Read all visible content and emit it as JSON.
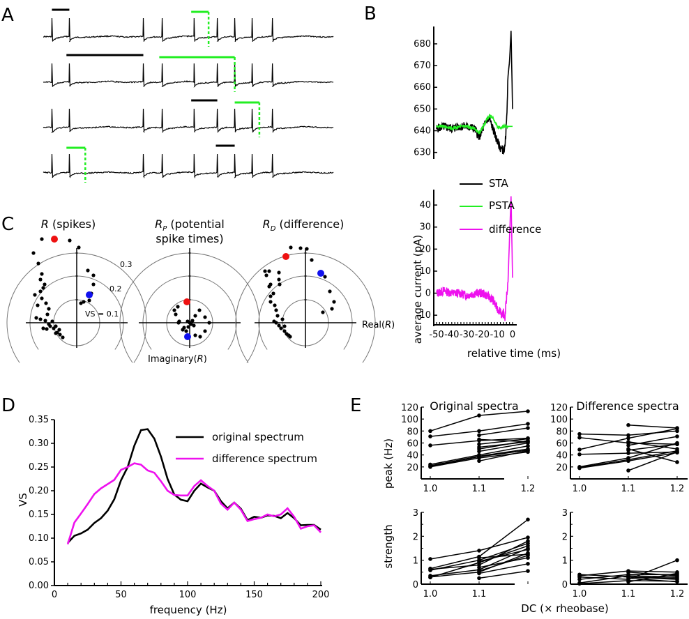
{
  "panels": {
    "A": {
      "letter": "A"
    },
    "B": {
      "letter": "B"
    },
    "C": {
      "letter": "C"
    },
    "D": {
      "letter": "D"
    },
    "E": {
      "letter": "E"
    }
  },
  "colors": {
    "black": "#000000",
    "green": "#22ee22",
    "magenta": "#ee11ee",
    "red": "#ee1111",
    "blue": "#1111ee",
    "grey": "#777777"
  },
  "chart_data": [
    {
      "id": "A",
      "type": "line",
      "title": "",
      "description": "Four voltage traces with spikes; black bars mark ISIs, green bars with dashed lines mark potential spike times",
      "spike_times_frac": [
        0.03,
        0.09,
        0.345,
        0.41,
        0.52,
        0.6,
        0.66,
        0.72,
        0.79
      ],
      "traces": [
        {
          "black_bar": [
            0.03,
            0.09
          ],
          "green_bar": [
            0.51,
            0.57
          ]
        },
        {
          "black_bar": [
            0.08,
            0.345
          ],
          "green_bar": [
            0.4,
            0.66
          ]
        },
        {
          "black_bar": [
            0.51,
            0.6
          ],
          "green_bar": [
            0.66,
            0.745
          ]
        },
        {
          "black_bar": [
            0.595,
            0.66
          ],
          "green_bar": [
            0.08,
            0.145
          ]
        }
      ]
    },
    {
      "id": "B-top",
      "type": "line",
      "ylabel": "average current (pA)",
      "ylim": [
        627,
        688
      ],
      "yticks": [
        630,
        640,
        650,
        660,
        670,
        680
      ],
      "xlim": [
        -50,
        0
      ],
      "series": [
        {
          "name": "STA",
          "x": [
            -50,
            -45,
            -40,
            -35,
            -30,
            -25,
            -22,
            -20,
            -17,
            -15,
            -13,
            -10,
            -8,
            -6,
            -5,
            -4,
            -3,
            -2,
            -1,
            0
          ],
          "values": [
            641,
            642,
            641,
            642,
            642,
            641,
            637,
            640,
            645,
            645,
            641,
            635,
            632,
            631,
            632,
            643,
            665,
            672,
            686,
            650
          ]
        },
        {
          "name": "PSTA",
          "x": [
            -50,
            -45,
            -40,
            -35,
            -30,
            -25,
            -22,
            -20,
            -17,
            -15,
            -13,
            -10,
            -8,
            -6,
            -4,
            -2,
            0
          ],
          "values": [
            642,
            642,
            641,
            642,
            642,
            641,
            639,
            641,
            645,
            647,
            646,
            642,
            641,
            642,
            642,
            642,
            642
          ]
        }
      ]
    },
    {
      "id": "B-bottom",
      "type": "line",
      "xlabel": "relative time (ms)",
      "ylim": [
        -15,
        47
      ],
      "yticks": [
        -10,
        0,
        10,
        20,
        30,
        40
      ],
      "xlim": [
        -50,
        0
      ],
      "xticks": [
        -50,
        -40,
        -30,
        -20,
        -10,
        0
      ],
      "legend": [
        "STA",
        "PSTA",
        "difference"
      ],
      "series": [
        {
          "name": "difference",
          "x": [
            -50,
            -45,
            -40,
            -35,
            -30,
            -25,
            -20,
            -17,
            -15,
            -13,
            -11,
            -9,
            -8,
            -7,
            -6,
            -5,
            -4,
            -3,
            -2,
            -1,
            0
          ],
          "values": [
            0,
            1,
            0,
            0,
            -1,
            0,
            0,
            -1,
            -2,
            -3,
            -6,
            -8,
            -7,
            -11,
            -9,
            -11,
            -2,
            5,
            25,
            44,
            7
          ]
        }
      ]
    },
    {
      "id": "C",
      "type": "scatter",
      "subplots": [
        {
          "title_sym": "R",
          "title_sub": "",
          "title_rest": " (spikes)",
          "ring_labels": [
            "VS = 0.1",
            "0.2",
            "0.3"
          ]
        },
        {
          "title_sym": "R",
          "title_sub": "P",
          "title_rest": " (potential spike times)",
          "ring_labels": []
        },
        {
          "title_sym": "R",
          "title_sub": "D",
          "title_rest": " (difference)",
          "ring_labels": []
        }
      ],
      "xlabel": "Real(R)",
      "ylabel": "Imaginary(R)",
      "rings": [
        0.1,
        0.2,
        0.3
      ]
    },
    {
      "id": "D",
      "type": "line",
      "xlabel": "frequency (Hz)",
      "ylabel": "VS",
      "xlim": [
        0,
        200
      ],
      "ylim": [
        0,
        0.35
      ],
      "xticks": [
        0,
        50,
        100,
        150,
        200
      ],
      "yticks": [
        "0.00",
        "0.05",
        "0.10",
        "0.15",
        "0.20",
        "0.25",
        "0.30",
        "0.35"
      ],
      "legend": "top-right",
      "x": [
        10,
        15,
        20,
        25,
        30,
        35,
        40,
        45,
        50,
        55,
        60,
        65,
        70,
        75,
        80,
        85,
        90,
        95,
        100,
        105,
        110,
        115,
        120,
        125,
        130,
        135,
        140,
        145,
        150,
        155,
        160,
        165,
        170,
        175,
        180,
        185,
        190,
        195,
        200
      ],
      "series": [
        {
          "name": "original spectrum",
          "values": [
            0.09,
            0.105,
            0.11,
            0.118,
            0.132,
            0.142,
            0.158,
            0.182,
            0.222,
            0.25,
            0.295,
            0.328,
            0.33,
            0.31,
            0.272,
            0.225,
            0.192,
            0.181,
            0.178,
            0.2,
            0.215,
            0.207,
            0.2,
            0.178,
            0.163,
            0.175,
            0.162,
            0.138,
            0.145,
            0.143,
            0.148,
            0.147,
            0.142,
            0.153,
            0.142,
            0.127,
            0.128,
            0.128,
            0.118
          ]
        },
        {
          "name": "difference spectrum",
          "values": [
            0.087,
            0.133,
            0.152,
            0.172,
            0.193,
            0.205,
            0.214,
            0.223,
            0.244,
            0.25,
            0.258,
            0.255,
            0.243,
            0.238,
            0.22,
            0.2,
            0.191,
            0.19,
            0.19,
            0.21,
            0.222,
            0.21,
            0.2,
            0.173,
            0.16,
            0.175,
            0.16,
            0.136,
            0.14,
            0.143,
            0.15,
            0.146,
            0.15,
            0.163,
            0.145,
            0.12,
            0.125,
            0.127,
            0.112
          ]
        }
      ]
    },
    {
      "id": "E",
      "type": "line",
      "xlabel": "DC (× rheobase)",
      "col_titles": [
        "Original spectra",
        "Difference spectra"
      ],
      "row_labels": [
        "peak (Hz)",
        "strength"
      ],
      "x": [
        1.0,
        1.1,
        1.2
      ],
      "xticks": [
        "1.0",
        "1.1",
        "1.2"
      ],
      "peak_yticks": [
        20,
        40,
        60,
        80,
        100,
        120
      ],
      "strength_yticks": [
        0,
        1,
        2,
        3
      ],
      "original_peak": [
        [
          80,
          106,
          113
        ],
        [
          71,
          80,
          92
        ],
        [
          56,
          64,
          68
        ],
        [
          24,
          40,
          55
        ],
        [
          22,
          38,
          50
        ],
        [
          21,
          37,
          48
        ],
        [
          20,
          35,
          45
        ],
        [
          null,
          73,
          85
        ],
        [
          null,
          66,
          62
        ],
        [
          null,
          58,
          67
        ],
        [
          null,
          53,
          62
        ],
        [
          null,
          50,
          64
        ],
        [
          null,
          46,
          60
        ],
        [
          null,
          30,
          47
        ]
      ],
      "difference_peak": [
        [
          75,
          73,
          80
        ],
        [
          69,
          60,
          58
        ],
        [
          49,
          68,
          84
        ],
        [
          41,
          43,
          45
        ],
        [
          20,
          35,
          60
        ],
        [
          19,
          32,
          47
        ],
        [
          18,
          30,
          44
        ],
        [
          null,
          90,
          85
        ],
        [
          null,
          56,
          71
        ],
        [
          null,
          50,
          28
        ],
        [
          null,
          14,
          45
        ],
        [
          null,
          62,
          50
        ],
        [
          null,
          48,
          58
        ]
      ],
      "original_strength": [
        [
          1.05,
          1.4,
          1.95
        ],
        [
          0.65,
          1.15,
          2.7
        ],
        [
          0.62,
          0.8,
          1.8
        ],
        [
          0.58,
          1.0,
          1.7
        ],
        [
          0.35,
          0.6,
          1.5
        ],
        [
          0.3,
          0.5,
          1.3
        ],
        [
          0.28,
          0.9,
          1.6
        ],
        [
          null,
          0.25,
          0.55
        ],
        [
          null,
          0.45,
          0.85
        ],
        [
          null,
          0.7,
          1.1
        ],
        [
          null,
          1.1,
          1.25
        ],
        [
          null,
          0.55,
          1.2
        ],
        [
          null,
          0.95,
          1.45
        ]
      ],
      "difference_strength": [
        [
          0.4,
          0.3,
          0.25
        ],
        [
          0.35,
          0.55,
          0.5
        ],
        [
          0.3,
          0.2,
          1.0
        ],
        [
          0.2,
          0.4,
          0.4
        ],
        [
          0.05,
          0.35,
          0.3
        ],
        [
          0.02,
          0.15,
          0.12
        ],
        [
          null,
          0.5,
          0.35
        ],
        [
          null,
          0.25,
          0.1
        ],
        [
          null,
          0.1,
          0.45
        ],
        [
          null,
          0.3,
          0.2
        ]
      ]
    }
  ],
  "labels": {
    "b_ylabel": "average current (pA)",
    "b_xlabel": "relative time (ms)",
    "legend_sta": "STA",
    "legend_psta": "PSTA",
    "legend_diff": "difference",
    "c_real": "Real(",
    "c_imag": "Imaginary(",
    "c_r": "R",
    "c_close": ")",
    "c1_rest": " (spikes)",
    "c2_rest1": " (potential",
    "c2_rest2": "spike times)",
    "c3_rest": " (difference)",
    "c_sub_p": "P",
    "c_sub_d": "D",
    "vs01": "VS = 0.1",
    "r02": "0.2",
    "r03": "0.3",
    "d_ylabel": "VS",
    "d_xlabel": "frequency (Hz)",
    "d_leg1": "original spectrum",
    "d_leg2": "difference spectrum",
    "e_col1": "Original spectra",
    "e_col2": "Difference spectra",
    "e_row1": "peak (Hz)",
    "e_row2": "strength",
    "e_xlabel": "DC (× rheobase)"
  }
}
